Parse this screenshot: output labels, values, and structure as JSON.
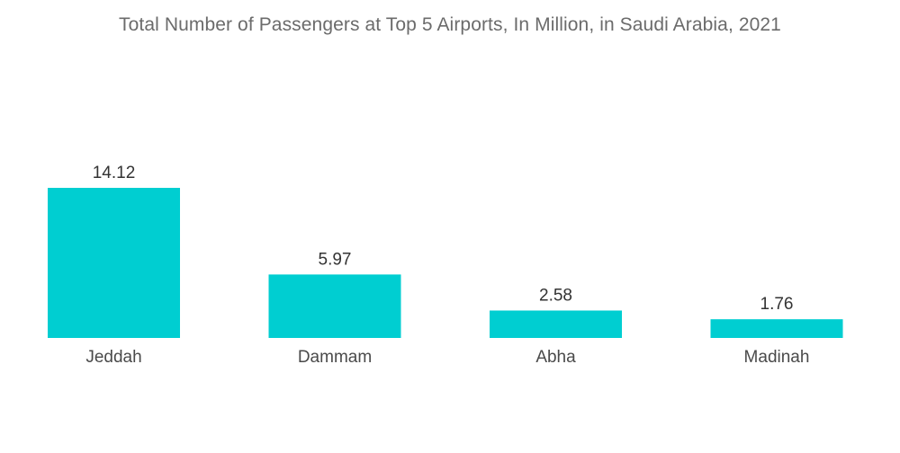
{
  "chart_data": {
    "type": "bar",
    "title": "Total Number of Passengers at Top 5 Airports, In Million, in Saudi Arabia, 2021",
    "categories": [
      "Jeddah",
      "Dammam",
      "Abha",
      "Madinah"
    ],
    "values": [
      14.12,
      5.97,
      2.58,
      1.76
    ],
    "value_labels": [
      "14.12",
      "5.97",
      "2.58",
      "1.76"
    ],
    "bar_color": "#00CED1",
    "ylim": [
      0,
      14.12
    ],
    "grid": false,
    "legend": "none"
  }
}
